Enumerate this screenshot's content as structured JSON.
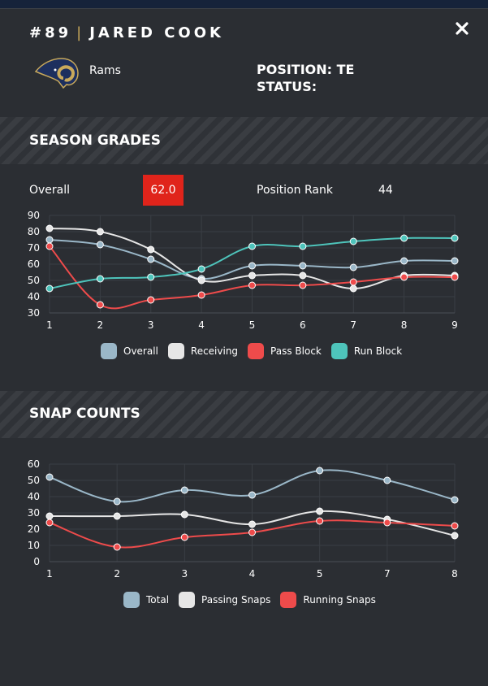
{
  "player": {
    "number": "#89",
    "separator": "|",
    "name": "JARED COOK",
    "team": "Rams",
    "position": "POSITION: TE",
    "status": "STATUS:"
  },
  "icons": {
    "close": "close-icon",
    "logo": "rams-logo-icon"
  },
  "sections": {
    "grades_title": "SEASON GRADES",
    "snaps_title": "SNAP COUNTS"
  },
  "grades": {
    "overall_label": "Overall",
    "overall_value": "62.0",
    "rank_label": "Position Rank",
    "rank_value": "44"
  },
  "colors": {
    "overall": "#9ab7c8",
    "receiving": "#e6e6e6",
    "pass_block": "#ee4b4b",
    "run_block": "#4ec4bb",
    "badge": "#e0241b",
    "accent_gold": "#c9a95b"
  },
  "chart_data": [
    {
      "type": "line",
      "x": [
        "1",
        "2",
        "3",
        "4",
        "5",
        "6",
        "7",
        "8",
        "9"
      ],
      "ylim": [
        30,
        90
      ],
      "yticks": [
        30,
        40,
        50,
        60,
        70,
        80,
        90
      ],
      "series": [
        {
          "name": "Overall",
          "color": "#9ab7c8",
          "values": [
            75,
            72,
            63,
            51,
            59,
            59,
            58,
            62,
            62
          ]
        },
        {
          "name": "Receiving",
          "color": "#e6e6e6",
          "values": [
            82,
            80,
            69,
            50,
            53,
            53,
            45,
            53,
            53
          ]
        },
        {
          "name": "Pass Block",
          "color": "#ee4b4b",
          "values": [
            71,
            35,
            38,
            41,
            47,
            47,
            49,
            52,
            52
          ]
        },
        {
          "name": "Run Block",
          "color": "#4ec4bb",
          "values": [
            45,
            51,
            52,
            57,
            71,
            71,
            74,
            76,
            76
          ]
        }
      ]
    },
    {
      "type": "line",
      "x": [
        "1",
        "2",
        "3",
        "4",
        "5",
        "7",
        "8"
      ],
      "ylim": [
        0,
        60
      ],
      "yticks": [
        0,
        10,
        20,
        30,
        40,
        50,
        60
      ],
      "series": [
        {
          "name": "Total",
          "color": "#9ab7c8",
          "values": [
            52,
            37,
            44,
            41,
            56,
            50,
            38
          ]
        },
        {
          "name": "Passing Snaps",
          "color": "#e6e6e6",
          "values": [
            28,
            28,
            29,
            23,
            31,
            26,
            16
          ]
        },
        {
          "name": "Running Snaps",
          "color": "#ee4b4b",
          "values": [
            24,
            9,
            15,
            18,
            25,
            24,
            22
          ]
        }
      ]
    }
  ]
}
